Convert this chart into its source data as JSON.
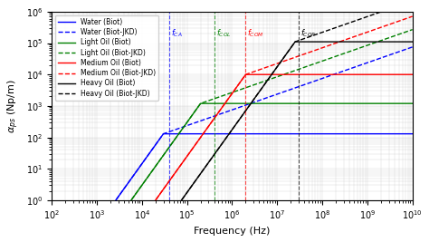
{
  "title": "",
  "xlabel": "Frequency (Hz)",
  "ylabel": "α_{ps} (Np/m)",
  "xlim_log": [
    2,
    10
  ],
  "ylim_log": [
    0,
    6
  ],
  "f_CA": 40000.0,
  "f_COL": 400000.0,
  "f_COM": 2000000.0,
  "f_COP": 30000000.0,
  "lines": [
    {
      "label": "Water (Biot)",
      "color": "blue",
      "linestyle": "-",
      "biot_plateau": 130.0,
      "f_c": 30000.0,
      "low_slope": 2,
      "high_val": 130.0
    },
    {
      "label": "Water (Biot-JKD)",
      "color": "blue",
      "linestyle": "--",
      "biot_plateau": 130.0,
      "f_c": 30000.0,
      "low_slope": 2,
      "high_slope": 1
    },
    {
      "label": "Light Oil (Biot)",
      "color": "green",
      "linestyle": "-",
      "biot_plateau": 1200.0,
      "f_c": 200000.0,
      "low_slope": 2,
      "high_val": 1200.0
    },
    {
      "label": "Light Oil (Biot-JKD)",
      "color": "green",
      "linestyle": "--",
      "biot_plateau": 1200.0,
      "f_c": 200000.0,
      "low_slope": 2,
      "high_slope": 1
    },
    {
      "label": "Medium Oil (Biot)",
      "color": "red",
      "linestyle": "-",
      "biot_plateau": 10000.0,
      "f_c": 2000000.0,
      "low_slope": 2,
      "high_val": 10000.0
    },
    {
      "label": "Medium Oil (Biot-JKD)",
      "color": "red",
      "linestyle": "--",
      "biot_plateau": 10000.0,
      "f_c": 2000000.0,
      "low_slope": 2,
      "high_slope": 1
    },
    {
      "label": "Heavy Oil (Biot)",
      "color": "black",
      "linestyle": "-",
      "biot_plateau": 110000.0,
      "f_c": 20000000.0,
      "low_slope": 2,
      "high_val": 110000.0
    },
    {
      "label": "Heavy Oil (Biot-JKD)",
      "color": "black",
      "linestyle": "--",
      "biot_plateau": 110000.0,
      "f_c": 20000000.0,
      "low_slope": 2,
      "high_slope": 1
    }
  ],
  "vlines": [
    {
      "x": 40000.0,
      "color": "blue",
      "label": "f_{CA}"
    },
    {
      "x": 400000.0,
      "color": "green",
      "label": "f_{COL}"
    },
    {
      "x": 2000000.0,
      "color": "red",
      "label": "f_{COM}"
    },
    {
      "x": 30000000.0,
      "color": "black",
      "label": "f_{COP}"
    }
  ]
}
